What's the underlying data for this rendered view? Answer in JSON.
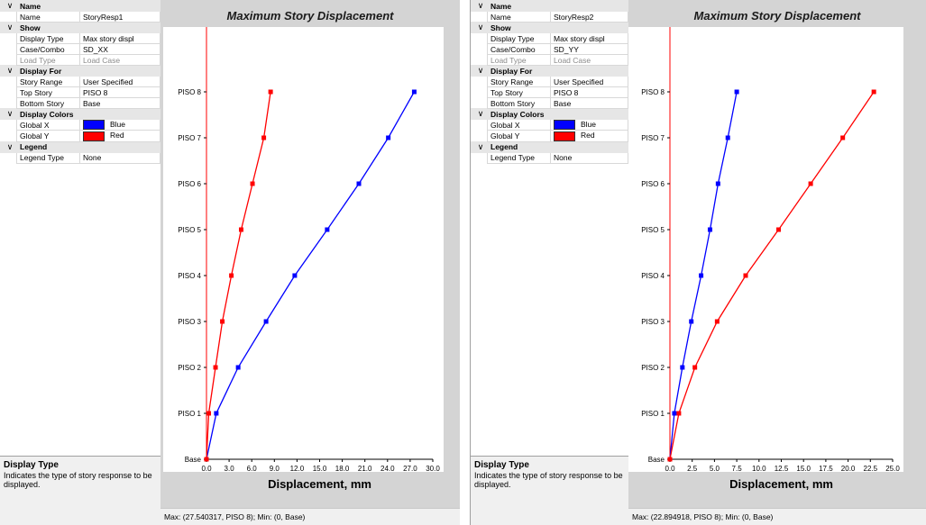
{
  "panels": [
    {
      "properties": {
        "name_cat": "Name",
        "name_label": "Name",
        "name_value": "StoryResp1",
        "show_cat": "Show",
        "display_type_label": "Display Type",
        "display_type_value": "Max story displ",
        "case_label": "Case/Combo",
        "case_value": "SD_XX",
        "load_type_label": "Load Type",
        "load_type_value": "Load Case",
        "display_for_cat": "Display For",
        "story_range_label": "Story Range",
        "story_range_value": "User Specified",
        "top_story_label": "Top Story",
        "top_story_value": "PISO 8",
        "bottom_story_label": "Bottom Story",
        "bottom_story_value": "Base",
        "colors_cat": "Display Colors",
        "globalx_label": "Global X",
        "globalx_value": "Blue",
        "globaly_label": "Global Y",
        "globaly_value": "Red",
        "legend_cat": "Legend",
        "legend_type_label": "Legend Type",
        "legend_type_value": "None"
      },
      "description": {
        "title": "Display Type",
        "text": "Indicates the type of story response to be displayed."
      },
      "status": "Max: (27.540317, PISO 8);   Min: (0, Base)"
    },
    {
      "properties": {
        "name_cat": "Name",
        "name_label": "Name",
        "name_value": "StoryResp2",
        "show_cat": "Show",
        "display_type_label": "Display Type",
        "display_type_value": "Max story displ",
        "case_label": "Case/Combo",
        "case_value": "SD_YY",
        "load_type_label": "Load Type",
        "load_type_value": "Load Case",
        "display_for_cat": "Display For",
        "story_range_label": "Story Range",
        "story_range_value": "User Specified",
        "top_story_label": "Top Story",
        "top_story_value": "PISO 8",
        "bottom_story_label": "Bottom Story",
        "bottom_story_value": "Base",
        "colors_cat": "Display Colors",
        "globalx_label": "Global X",
        "globalx_value": "Blue",
        "globaly_label": "Global Y",
        "globaly_value": "Red",
        "legend_cat": "Legend",
        "legend_type_label": "Legend Type",
        "legend_type_value": "None"
      },
      "description": {
        "title": "Display Type",
        "text": "Indicates the type of story response to be displayed."
      },
      "status": "Max: (22.894918, PISO 8);   Min: (0, Base)"
    }
  ],
  "colors": {
    "blue": "#0000ff",
    "red": "#ff0000"
  },
  "chart_data": [
    {
      "type": "line",
      "title": "Maximum Story Displacement",
      "xlabel": "Displacement, mm",
      "ylabel": "",
      "xlim": [
        0,
        30
      ],
      "xticks": [
        "0.0",
        "3.0",
        "6.0",
        "9.0",
        "12.0",
        "15.0",
        "18.0",
        "21.0",
        "24.0",
        "27.0",
        "30.0"
      ],
      "categories": [
        "Base",
        "PISO 1",
        "PISO 2",
        "PISO 3",
        "PISO 4",
        "PISO 5",
        "PISO 6",
        "PISO 7",
        "PISO 8"
      ],
      "grid": false,
      "series": [
        {
          "color": "#0000ff",
          "values": [
            0,
            1.3,
            4.2,
            7.9,
            11.7,
            16.0,
            20.2,
            24.1,
            27.54
          ]
        },
        {
          "color": "#ff0000",
          "values": [
            0,
            0.3,
            1.2,
            2.1,
            3.3,
            4.6,
            6.1,
            7.6,
            8.5
          ]
        }
      ]
    },
    {
      "type": "line",
      "title": "Maximum Story Displacement",
      "xlabel": "Displacement, mm",
      "ylabel": "",
      "xlim": [
        0,
        25
      ],
      "xticks": [
        "0.0",
        "2.5",
        "5.0",
        "7.5",
        "10.0",
        "12.5",
        "15.0",
        "17.5",
        "20.0",
        "22.5",
        "25.0"
      ],
      "categories": [
        "Base",
        "PISO 1",
        "PISO 2",
        "PISO 3",
        "PISO 4",
        "PISO 5",
        "PISO 6",
        "PISO 7",
        "PISO 8"
      ],
      "grid": false,
      "series": [
        {
          "color": "#0000ff",
          "values": [
            0,
            0.5,
            1.4,
            2.4,
            3.5,
            4.5,
            5.4,
            6.5,
            7.5
          ]
        },
        {
          "color": "#ff0000",
          "values": [
            0,
            1.0,
            2.8,
            5.3,
            8.5,
            12.2,
            15.8,
            19.4,
            22.89
          ]
        }
      ]
    }
  ]
}
